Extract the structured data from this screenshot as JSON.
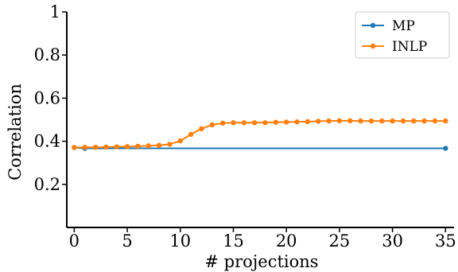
{
  "chart_data": {
    "type": "line",
    "xlabel": "# projections",
    "ylabel": "Correlation",
    "xlim": [
      -0.7,
      35.8
    ],
    "ylim": [
      0.0,
      1.0
    ],
    "xticks": [
      0,
      5,
      10,
      15,
      20,
      25,
      30,
      35
    ],
    "xtick_labels": [
      "0",
      "5",
      "10",
      "15",
      "20",
      "25",
      "30",
      "35"
    ],
    "yticks": [
      0.2,
      0.4,
      0.6,
      0.8,
      1.0
    ],
    "ytick_labels": [
      "0.2",
      "0.4",
      "0.6",
      "0.8",
      "1"
    ],
    "legend_position": "top-right",
    "grid": false,
    "series": [
      {
        "name": "MP",
        "color": "#1f77b4",
        "x": [
          0,
          1,
          35
        ],
        "y": [
          0.371,
          0.367,
          0.367
        ]
      },
      {
        "name": "INLP",
        "color": "#ff7f0e",
        "x": [
          0,
          1,
          2,
          3,
          4,
          5,
          6,
          7,
          8,
          9,
          10,
          11,
          12,
          13,
          14,
          15,
          16,
          17,
          18,
          19,
          20,
          21,
          22,
          23,
          24,
          25,
          26,
          27,
          28,
          29,
          30,
          31,
          32,
          33,
          34,
          35
        ],
        "y": [
          0.371,
          0.372,
          0.372,
          0.373,
          0.374,
          0.375,
          0.377,
          0.379,
          0.381,
          0.386,
          0.402,
          0.432,
          0.458,
          0.476,
          0.484,
          0.486,
          0.486,
          0.486,
          0.486,
          0.488,
          0.489,
          0.49,
          0.491,
          0.493,
          0.494,
          0.495,
          0.495,
          0.494,
          0.494,
          0.494,
          0.494,
          0.494,
          0.494,
          0.494,
          0.494,
          0.494
        ]
      }
    ]
  }
}
